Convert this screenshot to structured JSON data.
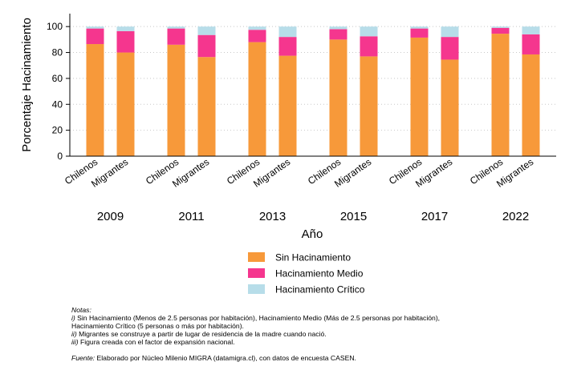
{
  "chart_data": {
    "type": "bar",
    "stacked": true,
    "groups": [
      "2009",
      "2011",
      "2013",
      "2015",
      "2017",
      "2022"
    ],
    "categories": [
      "Chilenos",
      "Migrantes"
    ],
    "xlabel": "Año",
    "ylabel": "Porcentaje Hacinamiento",
    "ylim": [
      0,
      110
    ],
    "yticks": [
      "0",
      "20",
      "40",
      "60",
      "80",
      "100"
    ],
    "grid": true,
    "legend_position": "bottom",
    "series": [
      {
        "name": "Sin Hacinamiento",
        "color": "#f7993a",
        "values": [
          [
            86.5,
            80.0
          ],
          [
            86.0,
            76.5
          ],
          [
            88.0,
            77.5
          ],
          [
            90.0,
            77.0
          ],
          [
            91.5,
            74.5
          ],
          [
            94.5,
            78.5
          ]
        ]
      },
      {
        "name": "Hacinamiento Medio",
        "color": "#f5368e",
        "values": [
          [
            12.0,
            16.5
          ],
          [
            12.5,
            17.0
          ],
          [
            9.5,
            14.5
          ],
          [
            8.0,
            15.5
          ],
          [
            7.0,
            17.5
          ],
          [
            4.5,
            15.5
          ]
        ]
      },
      {
        "name": "Hacinamiento Crítico",
        "color": "#b7dde9",
        "values": [
          [
            1.5,
            3.5
          ],
          [
            1.5,
            6.5
          ],
          [
            2.5,
            8.0
          ],
          [
            2.0,
            7.5
          ],
          [
            1.5,
            8.0
          ],
          [
            1.0,
            6.0
          ]
        ]
      }
    ]
  },
  "notes": {
    "heading": "Notas:",
    "line1_marker": "i)",
    "line1_text": " Sin Hacinamiento (Menos de 2.5 personas por habitación), Hacinamiento Medio (Más de 2.5 personas por habitación),",
    "line2_text": "Hacinamiento Crítico (5 personas o más por habitación).",
    "line3_marker": "ii)",
    "line3_text": " Migrantes se construye a partir de lugar de residencia de la madre cuando nació.",
    "line4_marker": "iii)",
    "line4_text": " Figura creada con el factor de expansión nacional.",
    "source_label": "Fuente:",
    "source_text": " Elaborado por Núcleo Milenio MIGRA (datamigra.cl), con datos de encuesta CASEN."
  }
}
